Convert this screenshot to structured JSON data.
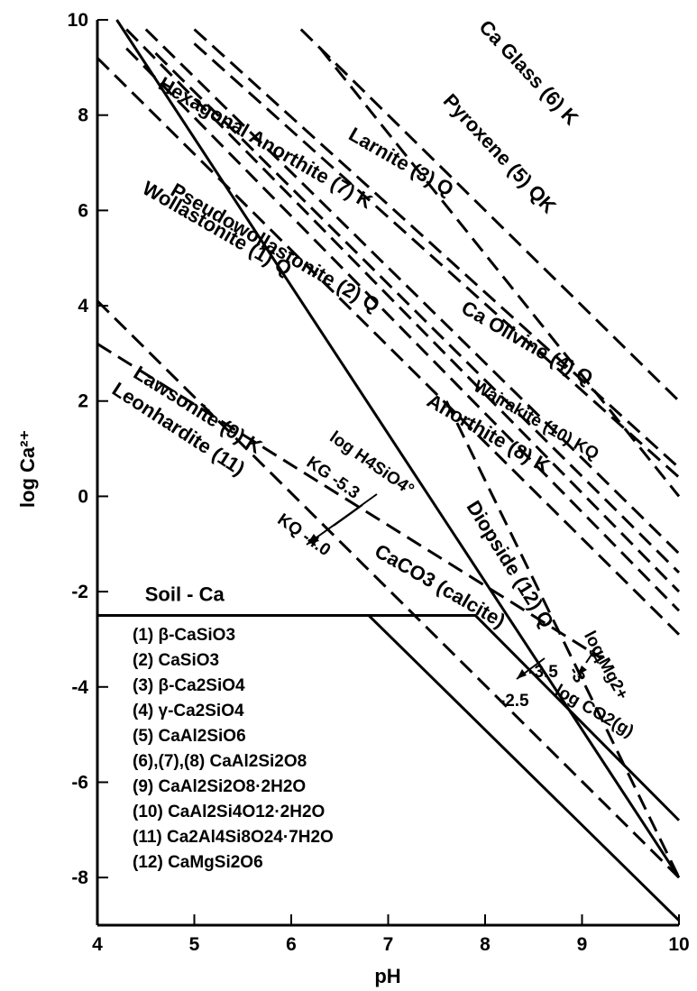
{
  "chart_data": {
    "type": "line",
    "title": "",
    "xlabel": "pH",
    "ylabel": "log Ca²⁺",
    "xlim": [
      4,
      10
    ],
    "ylim": [
      -9,
      10
    ],
    "x_ticks": [
      "4",
      "5",
      "6",
      "7",
      "8",
      "9",
      "10"
    ],
    "y_ticks": [
      "10",
      "8",
      "6",
      "4",
      "2",
      "0",
      "-2",
      "-4",
      "-6",
      "-8"
    ],
    "grid": false,
    "series": [
      {
        "name": "Ca Glass (6) K",
        "style": "dashed",
        "x": [
          6.1,
          10.0
        ],
        "y": [
          9.8,
          2.0
        ]
      },
      {
        "name": "Pyroxene (5) QK",
        "style": "dashed",
        "x": [
          6.3,
          10.0
        ],
        "y": [
          9.4,
          0.0
        ]
      },
      {
        "name": "Larnite (3) Q",
        "style": "dashed",
        "x": [
          5.0,
          10.0
        ],
        "y": [
          9.8,
          0.6
        ]
      },
      {
        "name": "Ca Olivine (4) Q",
        "style": "dashed",
        "x": [
          5.0,
          10.0
        ],
        "y": [
          9.5,
          0.4
        ]
      },
      {
        "name": "Hexagonal Anorthite (7) K",
        "style": "dashed",
        "x": [
          4.5,
          10.0
        ],
        "y": [
          9.8,
          -1.2
        ]
      },
      {
        "name": "Wairakite (10) KQ",
        "style": "dashed",
        "x": [
          4.6,
          10.0
        ],
        "y": [
          9.3,
          -1.6
        ]
      },
      {
        "name": "Pseudowollastonite (2) Q",
        "style": "dashed",
        "x": [
          4.3,
          10.0
        ],
        "y": [
          9.8,
          -2.0
        ]
      },
      {
        "name": "Anorthite (8) K",
        "style": "dashed",
        "x": [
          4.3,
          10.0
        ],
        "y": [
          9.4,
          -2.4
        ]
      },
      {
        "name": "Wollastonite (1) Q",
        "style": "dashed",
        "x": [
          4.0,
          10.0
        ],
        "y": [
          9.2,
          -2.9
        ]
      },
      {
        "name": "Lawsonite (9) K",
        "style": "dashed",
        "x": [
          4.0,
          10.0
        ],
        "y": [
          4.1,
          -8.0
        ]
      },
      {
        "name": "Leonhardite (11)",
        "style": "dashed",
        "x": [
          4.0,
          9.2
        ],
        "y": [
          3.2,
          -3.4
        ]
      },
      {
        "name": "Diopside (12) Q",
        "style": "dashed",
        "x": [
          7.6,
          10.0
        ],
        "y": [
          2.0,
          -8.0
        ]
      },
      {
        "name": "Soil-Ca",
        "style": "solid",
        "x": [
          4.0,
          7.9,
          10.0
        ],
        "y": [
          -2.5,
          -2.5,
          -6.8
        ]
      },
      {
        "name": "CaCO3 (calcite) -3.5",
        "style": "solid",
        "x": [
          4.2,
          10.0
        ],
        "y": [
          10.0,
          -8.0
        ]
      },
      {
        "name": "CaCO3 (calcite) -2.5",
        "style": "solid",
        "x": [
          6.8,
          10.0
        ],
        "y": [
          -2.5,
          -8.9
        ]
      }
    ],
    "labels": [
      {
        "text": "Ca Glass (6) K",
        "x": 8.4,
        "y": 8.8,
        "angle": 47
      },
      {
        "text": "Pyroxene (5) QK",
        "x": 8.1,
        "y": 7.1,
        "angle": 47
      },
      {
        "text": "Larnite (3) Q",
        "x": 7.1,
        "y": 6.9,
        "angle": 30
      },
      {
        "text": "Ca Olivine (4) Q",
        "x": 8.4,
        "y": 3.1,
        "angle": 30
      },
      {
        "text": "Hexagonal Anorthite (7) K",
        "x": 5.7,
        "y": 7.3,
        "angle": 30
      },
      {
        "text": "Wairakite (10) KQ",
        "x": 8.5,
        "y": 1.5,
        "angle": 30
      },
      {
        "text": "Pseudowollastonite (2) Q",
        "x": 5.8,
        "y": 5.1,
        "angle": 30
      },
      {
        "text": "Anorthite (8) K",
        "x": 8.0,
        "y": 1.2,
        "angle": 30
      },
      {
        "text": "Wollastonite (1) Q",
        "x": 5.2,
        "y": 5.5,
        "angle": 30
      },
      {
        "text": "Lawsonite (9) K",
        "x": 5.0,
        "y": 1.7,
        "angle": 32
      },
      {
        "text": "Leonhardite (11)",
        "x": 4.8,
        "y": 1.3,
        "angle": 33
      },
      {
        "text": "Diopside (12) Q",
        "x": 8.2,
        "y": -1.5,
        "angle": 58
      },
      {
        "text": "CaCO3 (calcite)",
        "x": 7.5,
        "y": -2.0,
        "angle": 30
      },
      {
        "text": "log CO2(g)",
        "x": 9.1,
        "y": -4.6,
        "angle": 30
      },
      {
        "text": "Soil - Ca",
        "x": 4.9,
        "y": -2.2,
        "angle": 0
      },
      {
        "text": "KG -5.3",
        "x": 6.4,
        "y": 0.3,
        "angle": 35
      },
      {
        "text": "log H4SiO4°",
        "x": 6.8,
        "y": 0.6,
        "angle": 35
      },
      {
        "text": "KQ -4.0",
        "x": 6.1,
        "y": -0.9,
        "angle": 35
      },
      {
        "text": "-3.5",
        "x": 8.6,
        "y": -3.8,
        "angle": 0
      },
      {
        "text": "-2.5",
        "x": 8.3,
        "y": -4.4,
        "angle": 0
      },
      {
        "text": "log Mg2+",
        "x": 9.2,
        "y": -3.6,
        "angle": 62
      },
      {
        "text": "-4",
        "x": 9.1,
        "y": -3.4,
        "angle": 60
      },
      {
        "text": "-3",
        "x": 8.9,
        "y": -3.8,
        "angle": 60
      }
    ],
    "key": [
      "(1) β-CaSiO3",
      "(2) CaSiO3",
      "(3) β-Ca2SiO4",
      "(4) γ-Ca2SiO4",
      "(5) CaAl2SiO6",
      "(6),(7),(8) CaAl2Si2O8",
      "(9) CaAl2Si2O8·2H2O",
      "(10) CaAl2Si4O12·2H2O",
      "(11) Ca2Al4Si8O24·7H2O",
      "(12) CaMgSi2O6"
    ]
  }
}
